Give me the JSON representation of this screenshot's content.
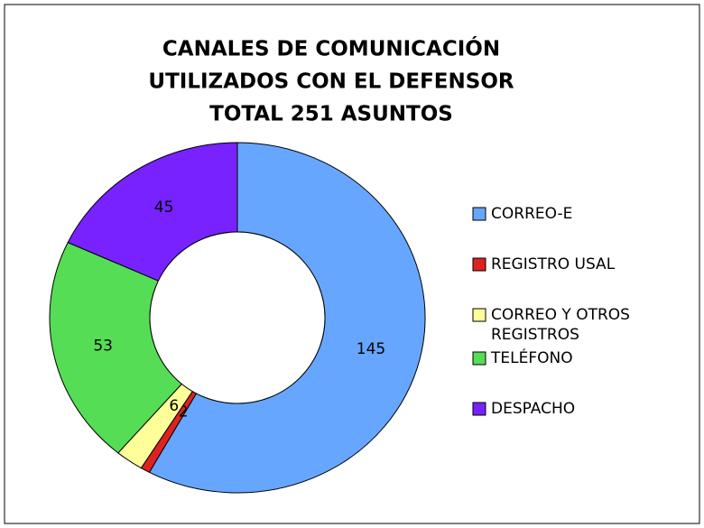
{
  "chart_data": {
    "type": "donut",
    "title": [
      "CANALES DE COMUNICACIÓN",
      "UTILIZADOS CON EL DEFENSOR",
      "TOTAL 251 ASUNTOS"
    ],
    "categories": [
      "CORREO-E",
      "REGISTRO USAL",
      "CORREO Y OTROS REGISTROS",
      "TELÉFONO",
      "DESPACHO"
    ],
    "values": [
      145,
      2,
      6,
      53,
      45
    ],
    "colors": [
      "#66A6FF",
      "#DD2222",
      "#FFFF99",
      "#55DD55",
      "#7722FF"
    ],
    "legend": "right"
  }
}
